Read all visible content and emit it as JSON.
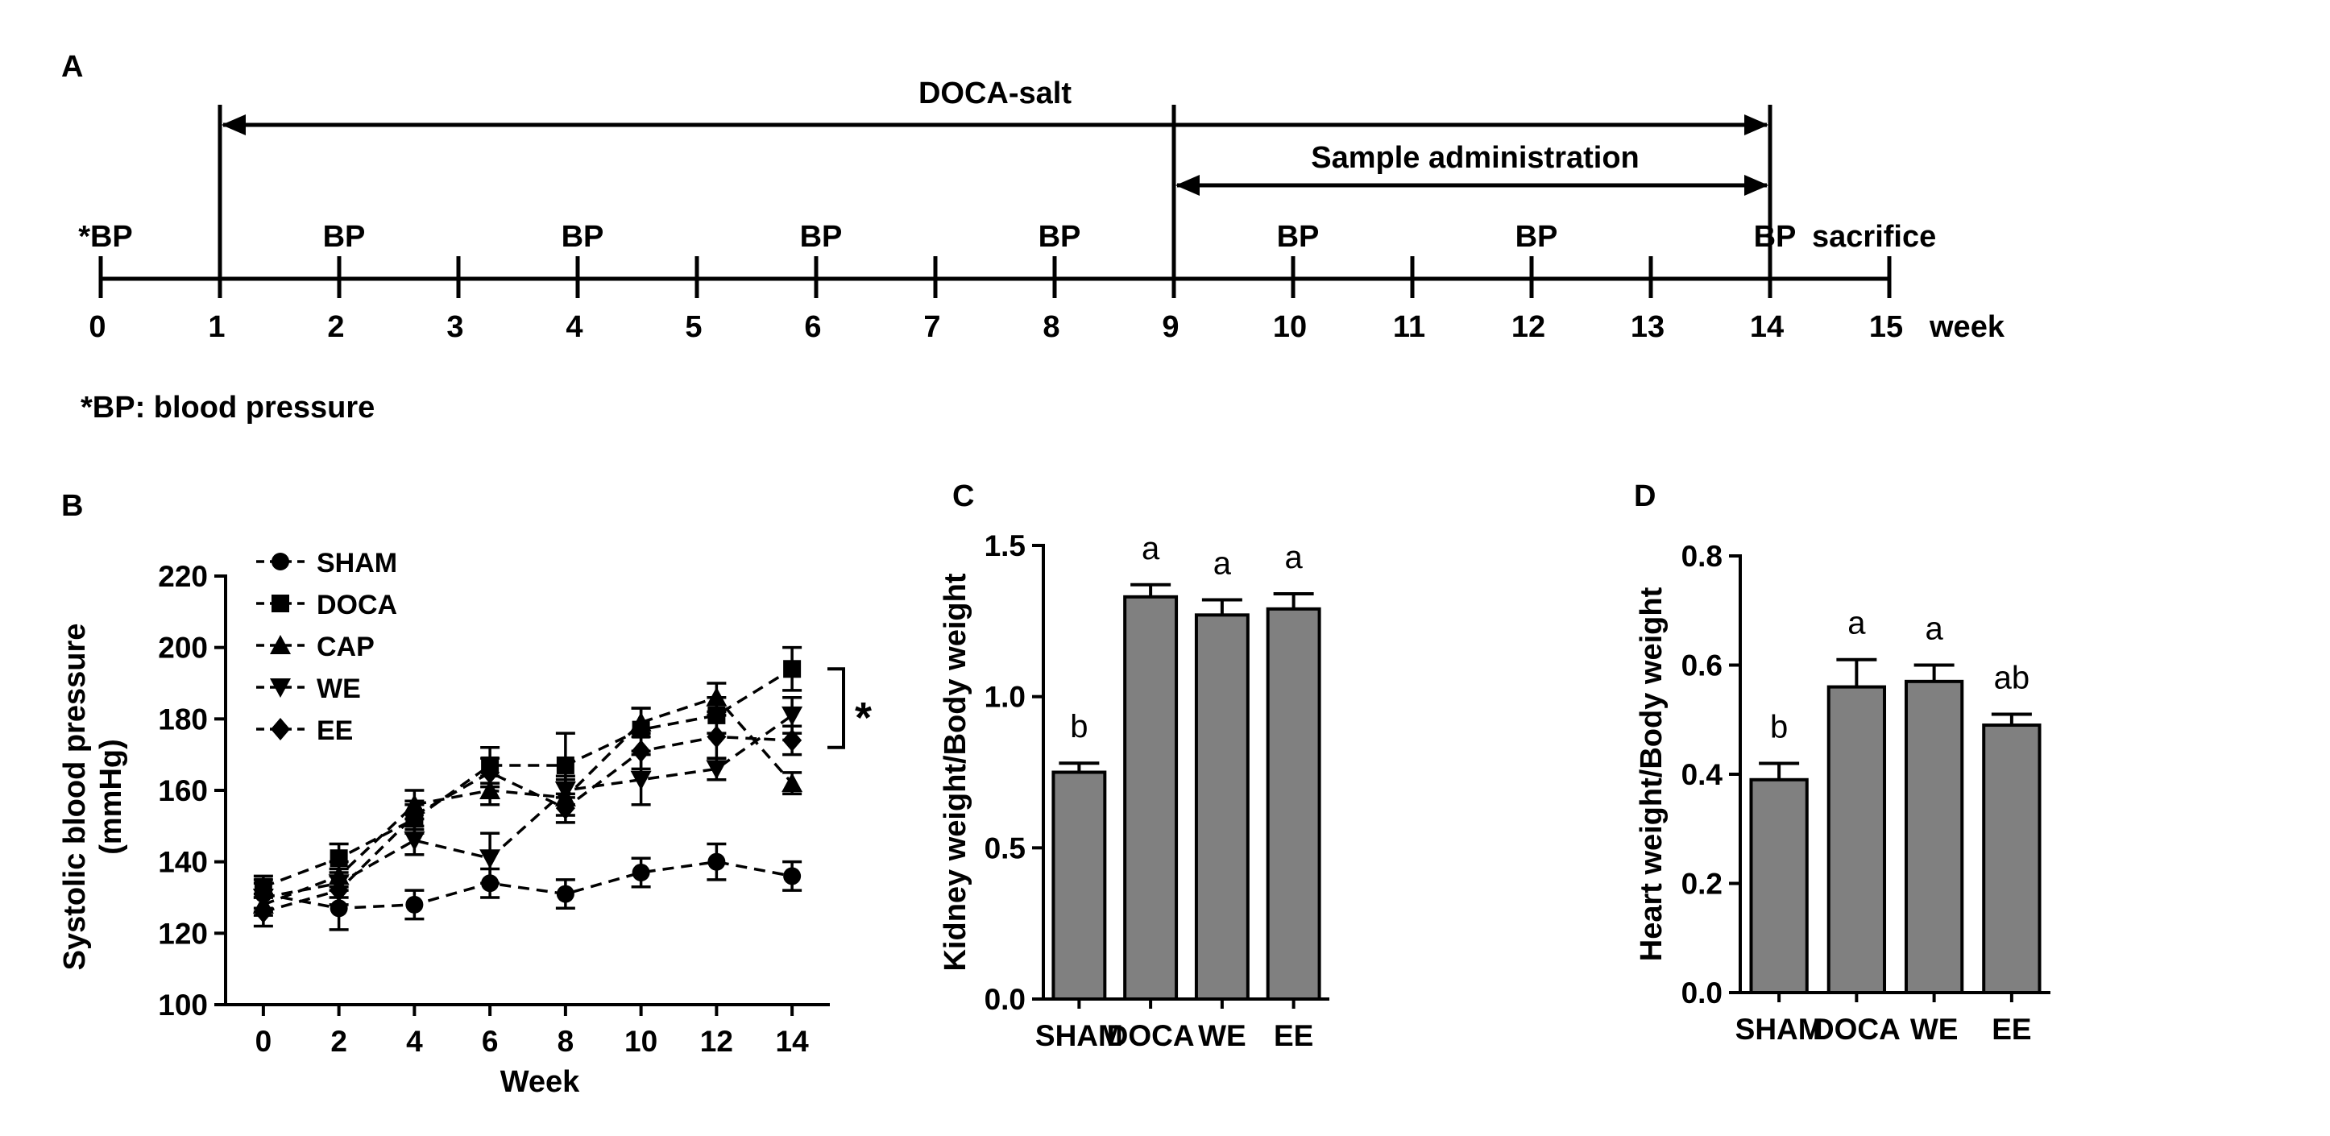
{
  "panel_a": {
    "label": "A",
    "doca_label": "DOCA-salt",
    "sample_label": "Sample administration",
    "sacrifice_label": "sacrifice",
    "unit_label": "week",
    "footnote": "*BP: blood pressure",
    "weeks": [
      "0",
      "1",
      "2",
      "3",
      "4",
      "5",
      "6",
      "7",
      "8",
      "9",
      "10",
      "11",
      "12",
      "13",
      "14",
      "15"
    ],
    "bp_marks": [
      {
        "week": 0,
        "text": "*BP"
      },
      {
        "week": 2,
        "text": "BP"
      },
      {
        "week": 4,
        "text": "BP"
      },
      {
        "week": 6,
        "text": "BP"
      },
      {
        "week": 8,
        "text": "BP"
      },
      {
        "week": 10,
        "text": "BP"
      },
      {
        "week": 12,
        "text": "BP"
      },
      {
        "week": 14,
        "text": "BP"
      }
    ],
    "doca_range": [
      1,
      14
    ],
    "sample_range": [
      9,
      14
    ],
    "timeline_end": 15
  },
  "chart_data": [
    {
      "panel": "B",
      "type": "line",
      "title": "",
      "xlabel": "Week",
      "ylabel_line1": "Systolic blood pressure",
      "ylabel_line2": "(mmHg)",
      "x": [
        0,
        2,
        4,
        6,
        8,
        10,
        12,
        14
      ],
      "xlim": [
        -1,
        15
      ],
      "ylim": [
        100,
        220
      ],
      "yticks": [
        "100",
        "120",
        "140",
        "160",
        "180",
        "200",
        "220"
      ],
      "xticks": [
        "0",
        "2",
        "4",
        "6",
        "8",
        "10",
        "12",
        "14"
      ],
      "significance": "*",
      "series": [
        {
          "name": "SHAM",
          "marker": "circle",
          "values": [
            131,
            127,
            128,
            134,
            131,
            137,
            140,
            136
          ],
          "errors": [
            4,
            6,
            4,
            4,
            4,
            4,
            5,
            4
          ]
        },
        {
          "name": "DOCA",
          "marker": "square",
          "values": [
            133,
            141,
            152,
            167,
            167,
            177,
            181,
            194
          ],
          "errors": [
            3,
            4,
            4,
            5,
            9,
            6,
            5,
            6
          ]
        },
        {
          "name": "CAP",
          "marker": "triangle-up",
          "values": [
            128,
            136,
            156,
            160,
            158,
            179,
            186,
            162
          ],
          "errors": [
            3,
            4,
            4,
            4,
            5,
            4,
            4,
            3
          ]
        },
        {
          "name": "WE",
          "marker": "triangle-down",
          "values": [
            130,
            134,
            146,
            141,
            160,
            163,
            166,
            181
          ],
          "errors": [
            4,
            4,
            4,
            7,
            4,
            7,
            3,
            5
          ]
        },
        {
          "name": "EE",
          "marker": "diamond",
          "values": [
            126,
            132,
            153,
            165,
            155,
            171,
            175,
            174
          ],
          "errors": [
            4,
            4,
            4,
            4,
            4,
            5,
            6,
            4
          ]
        }
      ]
    },
    {
      "panel": "C",
      "type": "bar",
      "title": "",
      "xlabel": "",
      "ylabel": "Kidney  weight/Body weight",
      "categories": [
        "SHAM",
        "DOCA",
        "WE",
        "EE"
      ],
      "values": [
        0.75,
        1.33,
        1.27,
        1.29
      ],
      "errors": [
        0.03,
        0.04,
        0.05,
        0.05
      ],
      "sig_letters": [
        "b",
        "a",
        "a",
        "a"
      ],
      "ylim": [
        0,
        1.5
      ],
      "yticks": [
        "0.0",
        "0.5",
        "1.0",
        "1.5"
      ],
      "bar_color": "#808080"
    },
    {
      "panel": "D",
      "type": "bar",
      "title": "",
      "xlabel": "",
      "ylabel": "Heart  weight/Body weight",
      "categories": [
        "SHAM",
        "DOCA",
        "WE",
        "EE"
      ],
      "values": [
        0.39,
        0.56,
        0.57,
        0.49
      ],
      "errors": [
        0.03,
        0.05,
        0.03,
        0.02
      ],
      "sig_letters": [
        "b",
        "a",
        "a",
        "ab"
      ],
      "ylim": [
        0,
        0.8
      ],
      "yticks": [
        "0.0",
        "0.2",
        "0.4",
        "0.6",
        "0.8"
      ],
      "bar_color": "#808080"
    }
  ]
}
